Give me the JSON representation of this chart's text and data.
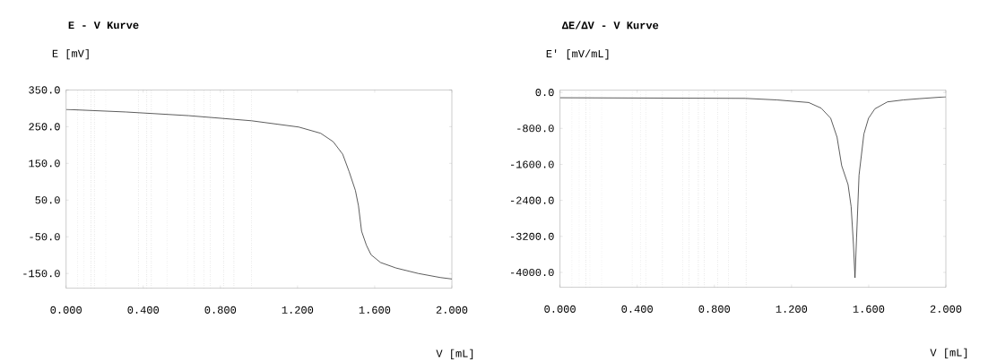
{
  "chart_data": [
    {
      "type": "line",
      "title": "E - V Kurve",
      "ylabel": "E [mV]",
      "xlabel": "V [mL]",
      "color": "#333333",
      "x": [
        0,
        0.31,
        0.636,
        0.962,
        1.206,
        1.32,
        1.385,
        1.434,
        1.467,
        1.5,
        1.516,
        1.532,
        1.557,
        1.581,
        1.63,
        1.71,
        1.826,
        1.94,
        2.0
      ],
      "values": [
        297,
        290,
        280,
        266,
        249,
        232,
        209,
        175,
        128,
        76,
        34,
        -35,
        -73,
        -99,
        -120,
        -135,
        -150,
        -161,
        -165
      ],
      "xlim": [
        0,
        2
      ],
      "ylim": [
        -190,
        350
      ],
      "xticks": [
        {
          "value": 0,
          "label": "0.000"
        },
        {
          "value": 0.4,
          "label": "0.400"
        },
        {
          "value": 0.8,
          "label": "0.800"
        },
        {
          "value": 1.2,
          "label": "1.200"
        },
        {
          "value": 1.6,
          "label": "1.600"
        },
        {
          "value": 2.0,
          "label": "2.000"
        }
      ],
      "yticks": [
        {
          "value": 350,
          "label": "350.0"
        },
        {
          "value": 250,
          "label": "250.0"
        },
        {
          "value": 150,
          "label": "150.0"
        },
        {
          "value": 50,
          "label": "50.0"
        },
        {
          "value": -50,
          "label": "-50.0"
        },
        {
          "value": -150,
          "label": "-150.0"
        }
      ],
      "ref_lines": [
        {
          "axis": "x",
          "value": 0.06,
          "color": "#999999",
          "line_style": "dotted"
        },
        {
          "axis": "x",
          "value": 0.093,
          "color": "#999999",
          "line_style": "dotted"
        },
        {
          "axis": "x",
          "value": 0.129,
          "color": "#999999",
          "line_style": "dotted"
        },
        {
          "axis": "x",
          "value": 0.147,
          "color": "#999999",
          "line_style": "dotted"
        },
        {
          "axis": "x",
          "value": 0.206,
          "color": "#999999",
          "line_style": "dotted"
        },
        {
          "axis": "x",
          "value": 0.375,
          "color": "#999999",
          "line_style": "dotted"
        },
        {
          "axis": "x",
          "value": 0.418,
          "color": "#999999",
          "line_style": "dotted"
        },
        {
          "axis": "x",
          "value": 0.442,
          "color": "#999999",
          "line_style": "dotted"
        },
        {
          "axis": "x",
          "value": 0.523,
          "color": "#999999",
          "line_style": "dotted"
        },
        {
          "axis": "x",
          "value": 0.629,
          "color": "#999999",
          "line_style": "dotted"
        },
        {
          "axis": "x",
          "value": 0.665,
          "color": "#999999",
          "line_style": "dotted"
        },
        {
          "axis": "x",
          "value": 0.714,
          "color": "#999999",
          "line_style": "dotted"
        },
        {
          "axis": "x",
          "value": 0.747,
          "color": "#999999",
          "line_style": "dotted"
        },
        {
          "axis": "x",
          "value": 0.817,
          "color": "#999999",
          "line_style": "dotted"
        },
        {
          "axis": "x",
          "value": 0.87,
          "color": "#999999",
          "line_style": "dotted"
        },
        {
          "axis": "x",
          "value": 0.962,
          "color": "#999999",
          "line_style": "dotted"
        }
      ]
    },
    {
      "type": "line",
      "title": "ΔE/ΔV - V Kurve",
      "ylabel": "E' [mV/mL]",
      "xlabel": "V [mL]",
      "color": "#333333",
      "x": [
        0,
        0.96,
        1.125,
        1.289,
        1.354,
        1.403,
        1.436,
        1.46,
        1.493,
        1.509,
        1.521,
        1.529,
        1.537,
        1.55,
        1.575,
        1.599,
        1.632,
        1.697,
        1.779,
        1.861,
        2.0
      ],
      "values": [
        -119,
        -133,
        -168,
        -225,
        -351,
        -575,
        -996,
        -1628,
        -2049,
        -2540,
        -3382,
        -4119,
        -3242,
        -1839,
        -926,
        -575,
        -365,
        -211,
        -168,
        -140,
        -98
      ],
      "xlim": [
        0,
        2
      ],
      "ylim": [
        -4330,
        50
      ],
      "xticks": [
        {
          "value": 0,
          "label": "0.000"
        },
        {
          "value": 0.4,
          "label": "0.400"
        },
        {
          "value": 0.8,
          "label": "0.800"
        },
        {
          "value": 1.2,
          "label": "1.200"
        },
        {
          "value": 1.6,
          "label": "1.600"
        },
        {
          "value": 2.0,
          "label": "2.000"
        }
      ],
      "yticks": [
        {
          "value": 0,
          "label": "0.0"
        },
        {
          "value": -800,
          "label": "-800.0"
        },
        {
          "value": -1600,
          "label": "-1600.0"
        },
        {
          "value": -2400,
          "label": "-2400.0"
        },
        {
          "value": -3200,
          "label": "-3200.0"
        },
        {
          "value": -4000,
          "label": "-4000.0"
        }
      ],
      "ref_lines": [
        {
          "axis": "x",
          "value": 0.062,
          "color": "#999999",
          "line_style": "dotted"
        },
        {
          "axis": "x",
          "value": 0.1,
          "color": "#999999",
          "line_style": "dotted"
        },
        {
          "axis": "x",
          "value": 0.134,
          "color": "#999999",
          "line_style": "dotted"
        },
        {
          "axis": "x",
          "value": 0.155,
          "color": "#999999",
          "line_style": "dotted"
        },
        {
          "axis": "x",
          "value": 0.216,
          "color": "#999999",
          "line_style": "dotted"
        },
        {
          "axis": "x",
          "value": 0.374,
          "color": "#999999",
          "line_style": "dotted"
        },
        {
          "axis": "x",
          "value": 0.417,
          "color": "#999999",
          "line_style": "dotted"
        },
        {
          "axis": "x",
          "value": 0.445,
          "color": "#999999",
          "line_style": "dotted"
        },
        {
          "axis": "x",
          "value": 0.531,
          "color": "#999999",
          "line_style": "dotted"
        },
        {
          "axis": "x",
          "value": 0.635,
          "color": "#999999",
          "line_style": "dotted"
        },
        {
          "axis": "x",
          "value": 0.669,
          "color": "#999999",
          "line_style": "dotted"
        },
        {
          "axis": "x",
          "value": 0.717,
          "color": "#999999",
          "line_style": "dotted"
        },
        {
          "axis": "x",
          "value": 0.748,
          "color": "#999999",
          "line_style": "dotted"
        },
        {
          "axis": "x",
          "value": 0.818,
          "color": "#999999",
          "line_style": "dotted"
        },
        {
          "axis": "x",
          "value": 0.874,
          "color": "#999999",
          "line_style": "dotted"
        },
        {
          "axis": "x",
          "value": 0.965,
          "color": "#999999",
          "line_style": "dotted"
        }
      ]
    }
  ]
}
